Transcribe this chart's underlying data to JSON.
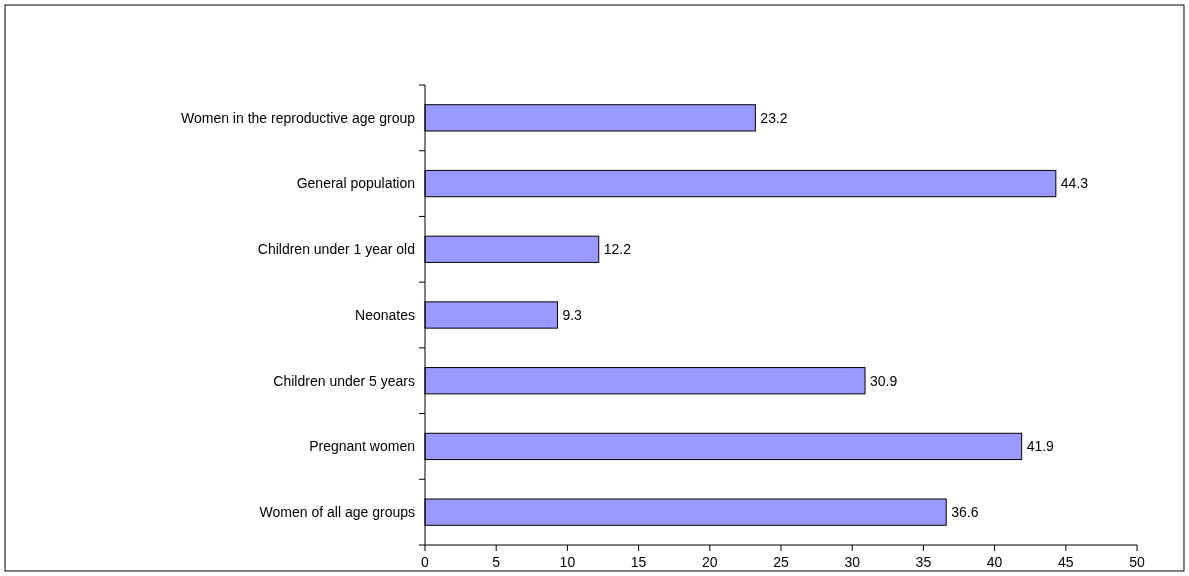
{
  "chart_data": {
    "type": "bar",
    "orientation": "horizontal",
    "categories": [
      "Women in the reproductive age group",
      "General population",
      "Children under 1 year old",
      "Neonates",
      "Children under 5 years",
      "Pregnant women",
      "Women of all age groups"
    ],
    "values": [
      23.2,
      44.3,
      12.2,
      9.3,
      30.9,
      41.9,
      36.6
    ],
    "color": "#9999ff",
    "xlim": [
      0,
      50
    ],
    "xticks": [
      0,
      5,
      10,
      15,
      20,
      25,
      30,
      35,
      40,
      45,
      50
    ],
    "data_labels": true,
    "grid": false
  }
}
